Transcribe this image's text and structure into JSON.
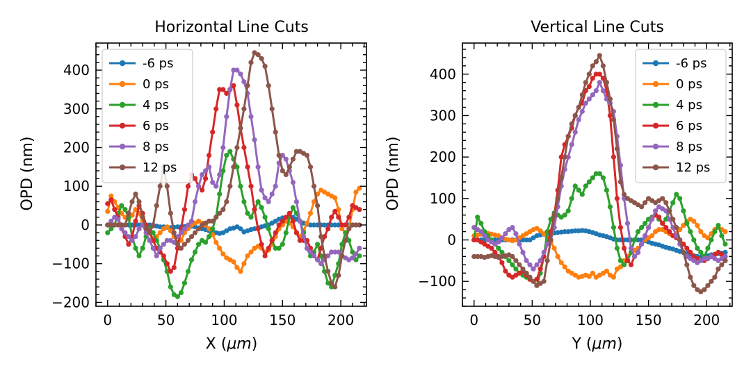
{
  "chart_data": [
    {
      "type": "line",
      "title": "Horizontal Line Cuts",
      "xlabel_main": "X (",
      "xlabel_unit": "μm",
      "xlabel_close": ")",
      "ylabel": "OPD (nm)",
      "xlim": [
        -10,
        222
      ],
      "ylim": [
        -210,
        470
      ],
      "xticks": [
        0,
        50,
        100,
        150,
        200
      ],
      "yticks": [
        -200,
        -100,
        0,
        100,
        200,
        300,
        400
      ],
      "legend_position": "top-left",
      "grid": false,
      "x": [
        0,
        3,
        6,
        9,
        12,
        15,
        18,
        21,
        24,
        27,
        30,
        33,
        36,
        39,
        42,
        45,
        48,
        51,
        54,
        57,
        60,
        63,
        66,
        69,
        72,
        75,
        78,
        81,
        84,
        87,
        90,
        93,
        96,
        99,
        102,
        105,
        108,
        111,
        114,
        117,
        120,
        123,
        126,
        129,
        132,
        135,
        138,
        141,
        144,
        147,
        150,
        153,
        156,
        159,
        162,
        165,
        168,
        171,
        174,
        177,
        180,
        183,
        186,
        189,
        192,
        195,
        198,
        201,
        204,
        207,
        210,
        213,
        216
      ],
      "series": [
        {
          "name": "-6 ps",
          "color": "#1f77b4",
          "values": [
            0,
            0,
            0,
            0,
            0,
            0,
            0,
            0,
            0,
            0,
            0,
            0,
            0,
            -2,
            -3,
            -5,
            -5,
            -6,
            -7,
            -6,
            -5,
            -5,
            -4,
            -3,
            -3,
            -5,
            -8,
            -10,
            -12,
            -15,
            -18,
            -20,
            -22,
            -20,
            -15,
            -10,
            -8,
            -5,
            -10,
            -18,
            -15,
            -12,
            -10,
            -8,
            -5,
            -2,
            0,
            5,
            10,
            15,
            18,
            20,
            22,
            20,
            15,
            10,
            5,
            2,
            0,
            0,
            0,
            0,
            0,
            0,
            0,
            0,
            0,
            0,
            0,
            0,
            0,
            0,
            0
          ]
        },
        {
          "name": "0 ps",
          "color": "#ff7f0e",
          "values": [
            35,
            75,
            60,
            45,
            30,
            20,
            15,
            25,
            40,
            30,
            10,
            -5,
            -20,
            -35,
            -30,
            -20,
            -10,
            -5,
            -15,
            -30,
            -45,
            -40,
            -20,
            -10,
            0,
            5,
            10,
            5,
            0,
            -10,
            -25,
            -45,
            -60,
            -75,
            -85,
            -90,
            -95,
            -110,
            -120,
            -100,
            -80,
            -70,
            -60,
            -55,
            -60,
            -70,
            -65,
            -50,
            -30,
            -10,
            0,
            10,
            5,
            -5,
            -20,
            -30,
            -15,
            5,
            30,
            60,
            80,
            90,
            85,
            80,
            75,
            70,
            40,
            -10,
            -20,
            -10,
            40,
            85,
            95
          ]
        },
        {
          "name": "4 ps",
          "color": "#2ca02c",
          "values": [
            -20,
            -10,
            0,
            30,
            50,
            40,
            20,
            -30,
            -60,
            -80,
            -60,
            -30,
            -10,
            -20,
            -40,
            -60,
            -90,
            -120,
            -160,
            -180,
            -185,
            -175,
            -150,
            -120,
            -90,
            -70,
            -50,
            -40,
            -45,
            -30,
            -10,
            20,
            80,
            140,
            180,
            190,
            170,
            150,
            100,
            60,
            30,
            20,
            40,
            60,
            45,
            20,
            -10,
            -40,
            -60,
            -60,
            -50,
            -20,
            20,
            45,
            30,
            10,
            -20,
            -60,
            -80,
            -70,
            -50,
            -80,
            -120,
            -150,
            -160,
            -130,
            -100,
            -50,
            -20,
            -40,
            -70,
            -90,
            -80
          ]
        },
        {
          "name": "6 ps",
          "color": "#d62728",
          "values": [
            55,
            65,
            40,
            20,
            -10,
            -30,
            -50,
            -30,
            10,
            50,
            30,
            0,
            -20,
            -40,
            -60,
            -70,
            -80,
            -100,
            -120,
            -110,
            -60,
            -10,
            40,
            100,
            130,
            120,
            100,
            90,
            120,
            180,
            240,
            300,
            350,
            350,
            340,
            350,
            360,
            310,
            250,
            200,
            150,
            100,
            40,
            -10,
            -50,
            -80,
            -60,
            -40,
            -20,
            0,
            10,
            20,
            30,
            10,
            -20,
            -40,
            -40,
            -40,
            -60,
            -80,
            -90,
            -60,
            -30,
            -10,
            20,
            35,
            20,
            0,
            0,
            20,
            50,
            45,
            40
          ]
        },
        {
          "name": "8 ps",
          "color": "#9467bd",
          "values": [
            0,
            10,
            20,
            15,
            -10,
            -20,
            -30,
            -40,
            -30,
            -10,
            0,
            -20,
            -40,
            -60,
            -80,
            -60,
            -50,
            -40,
            -40,
            -45,
            -30,
            -20,
            -10,
            0,
            10,
            60,
            100,
            130,
            140,
            150,
            110,
            100,
            130,
            200,
            280,
            350,
            400,
            400,
            390,
            370,
            340,
            280,
            220,
            150,
            90,
            70,
            60,
            80,
            100,
            160,
            180,
            170,
            140,
            110,
            60,
            10,
            -30,
            -60,
            -70,
            -80,
            -90,
            -100,
            -90,
            -80,
            -70,
            -70,
            -70,
            -80,
            -85,
            -90,
            -85,
            -75,
            -60
          ]
        },
        {
          "name": "12 ps",
          "color": "#8c564b",
          "values": [
            0,
            0,
            0,
            0,
            0,
            0,
            30,
            60,
            80,
            60,
            20,
            -10,
            -20,
            0,
            50,
            100,
            150,
            100,
            30,
            -20,
            -50,
            -60,
            -50,
            -40,
            -30,
            -20,
            -10,
            0,
            5,
            10,
            10,
            20,
            30,
            40,
            60,
            100,
            150,
            200,
            250,
            300,
            360,
            420,
            445,
            440,
            430,
            410,
            360,
            300,
            240,
            180,
            140,
            130,
            150,
            170,
            190,
            190,
            185,
            180,
            150,
            100,
            50,
            -30,
            -80,
            -120,
            -150,
            -160,
            -130,
            -80,
            -40,
            -10,
            0,
            0,
            0
          ]
        }
      ]
    },
    {
      "type": "line",
      "title": "Vertical Line Cuts",
      "xlabel_main": "Y (",
      "xlabel_unit": "μm",
      "xlabel_close": ")",
      "ylabel": "OPD (nm)",
      "xlim": [
        -10,
        222
      ],
      "ylim": [
        -160,
        475
      ],
      "xticks": [
        0,
        50,
        100,
        150,
        200
      ],
      "yticks": [
        -100,
        0,
        100,
        200,
        300,
        400
      ],
      "legend_position": "top-right",
      "grid": false,
      "x": [
        0,
        3,
        6,
        9,
        12,
        15,
        18,
        21,
        24,
        27,
        30,
        33,
        36,
        39,
        42,
        45,
        48,
        51,
        54,
        57,
        60,
        63,
        66,
        69,
        72,
        75,
        78,
        81,
        84,
        87,
        90,
        93,
        96,
        99,
        102,
        105,
        108,
        111,
        114,
        117,
        120,
        123,
        126,
        129,
        132,
        135,
        138,
        141,
        144,
        147,
        150,
        153,
        156,
        159,
        162,
        165,
        168,
        171,
        174,
        177,
        180,
        183,
        186,
        189,
        192,
        195,
        198,
        201,
        204,
        207,
        210,
        213,
        216
      ],
      "series": [
        {
          "name": "-6 ps",
          "color": "#1f77b4",
          "values": [
            0,
            0,
            0,
            0,
            0,
            0,
            0,
            0,
            0,
            0,
            0,
            0,
            0,
            0,
            0,
            0,
            0,
            5,
            10,
            12,
            14,
            15,
            16,
            17,
            18,
            19,
            20,
            20,
            21,
            22,
            22,
            23,
            22,
            20,
            18,
            15,
            12,
            10,
            8,
            5,
            2,
            0,
            0,
            0,
            0,
            0,
            0,
            0,
            0,
            -2,
            -5,
            -8,
            -10,
            -12,
            -15,
            -18,
            -20,
            -22,
            -25,
            -28,
            -30,
            -32,
            -35,
            -38,
            -40,
            -42,
            -40,
            -38,
            -36,
            -35,
            -33,
            -32,
            -30
          ]
        },
        {
          "name": "0 ps",
          "color": "#ff7f0e",
          "values": [
            10,
            12,
            14,
            15,
            16,
            14,
            12,
            10,
            5,
            2,
            0,
            -2,
            0,
            5,
            10,
            15,
            20,
            25,
            28,
            22,
            15,
            5,
            -5,
            -20,
            -40,
            -55,
            -65,
            -75,
            -80,
            -85,
            -90,
            -88,
            -85,
            -88,
            -80,
            -90,
            -85,
            -80,
            -75,
            -85,
            -90,
            -70,
            -65,
            -50,
            -40,
            -30,
            -25,
            -20,
            -10,
            0,
            5,
            10,
            20,
            25,
            25,
            20,
            15,
            10,
            15,
            25,
            35,
            45,
            50,
            45,
            35,
            20,
            10,
            5,
            15,
            25,
            30,
            25,
            20
          ]
        },
        {
          "name": "4 ps",
          "color": "#2ca02c",
          "values": [
            0,
            55,
            40,
            20,
            10,
            0,
            -10,
            -20,
            -30,
            -40,
            -50,
            -60,
            -70,
            -80,
            -85,
            -90,
            -95,
            -100,
            -110,
            -80,
            -40,
            20,
            50,
            65,
            60,
            55,
            60,
            70,
            100,
            130,
            120,
            110,
            130,
            140,
            150,
            160,
            160,
            150,
            120,
            80,
            30,
            -20,
            -50,
            -60,
            -50,
            -30,
            0,
            20,
            30,
            40,
            50,
            55,
            60,
            50,
            40,
            50,
            70,
            90,
            110,
            100,
            70,
            40,
            20,
            0,
            -20,
            -30,
            -40,
            -20,
            0,
            20,
            35,
            10,
            -10
          ]
        },
        {
          "name": "6 ps",
          "color": "#d62728",
          "values": [
            0,
            0,
            -5,
            -10,
            -15,
            -20,
            -30,
            -40,
            -55,
            -75,
            -85,
            -90,
            -85,
            -80,
            -75,
            -85,
            -95,
            -100,
            -95,
            -70,
            -40,
            -10,
            20,
            60,
            120,
            200,
            230,
            250,
            270,
            300,
            320,
            330,
            360,
            370,
            390,
            400,
            400,
            390,
            360,
            300,
            200,
            100,
            30,
            -20,
            -50,
            -60,
            -40,
            -30,
            -10,
            10,
            30,
            50,
            60,
            55,
            40,
            30,
            20,
            10,
            5,
            0,
            -10,
            -20,
            -30,
            -40,
            -45,
            -50,
            -50,
            -45,
            -40,
            -35,
            -30,
            -35,
            -40
          ]
        },
        {
          "name": "8 ps",
          "color": "#9467bd",
          "values": [
            30,
            25,
            20,
            10,
            0,
            -5,
            -10,
            -5,
            5,
            15,
            25,
            30,
            15,
            -10,
            -30,
            -50,
            -60,
            -70,
            -60,
            -50,
            -30,
            -10,
            0,
            30,
            80,
            130,
            170,
            200,
            230,
            260,
            290,
            310,
            330,
            340,
            350,
            360,
            380,
            360,
            340,
            330,
            310,
            250,
            180,
            100,
            40,
            -20,
            -40,
            -30,
            -10,
            10,
            30,
            50,
            70,
            80,
            75,
            70,
            50,
            30,
            10,
            -10,
            -30,
            -40,
            -45,
            -50,
            -55,
            -50,
            -45,
            -45,
            -40,
            -45,
            -50,
            -45,
            -40
          ]
        },
        {
          "name": "12 ps",
          "color": "#8c564b",
          "values": [
            -40,
            -40,
            -40,
            -42,
            -40,
            -38,
            -40,
            -42,
            -40,
            -38,
            -36,
            -40,
            -50,
            -60,
            -70,
            -80,
            -90,
            -100,
            -110,
            -105,
            -100,
            -50,
            0,
            60,
            100,
            150,
            200,
            250,
            280,
            300,
            320,
            350,
            380,
            400,
            420,
            430,
            445,
            420,
            380,
            340,
            290,
            220,
            140,
            110,
            100,
            95,
            90,
            85,
            80,
            90,
            100,
            95,
            90,
            95,
            100,
            90,
            70,
            50,
            30,
            0,
            -30,
            -60,
            -90,
            -110,
            -120,
            -125,
            -120,
            -110,
            -100,
            -90,
            -70,
            -60,
            -50
          ]
        }
      ]
    }
  ]
}
